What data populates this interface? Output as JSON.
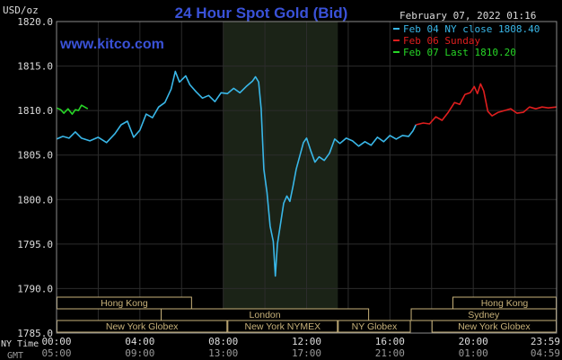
{
  "header": {
    "title": "24 Hour Spot Gold (Bid)",
    "unit": "USD/oz",
    "timestamp": "February 07, 2022 01:16",
    "site": "www.kitco.com"
  },
  "legend": [
    {
      "label": "Feb 04 NY close 1808.40",
      "color": "#39b7e8"
    },
    {
      "label": "Feb 06 Sunday",
      "color": "#e01e1e"
    },
    {
      "label": "Feb 07 Last 1810.20",
      "color": "#27d627"
    }
  ],
  "colors": {
    "background": "#000000",
    "grid": "#2c2c2c",
    "session_shade": "#1b2317",
    "market_bar": "#c8b27a",
    "axis_text": "#dcdcdc",
    "title": "#3a52d8",
    "site": "#3a52d8"
  },
  "markets": {
    "row1_left": "Hong Kong",
    "row1_right": "Hong Kong",
    "row2_left": "London",
    "row2_right": "Sydney",
    "row3": [
      "New York Globex",
      "New York NYMEX",
      "NY Globex",
      "New York Globex"
    ]
  },
  "time_axis": {
    "ny_label": "NY Time",
    "gmt_label": "GMT",
    "ny_ticks": [
      "00:00",
      "04:00",
      "08:00",
      "12:00",
      "16:00",
      "20:00",
      "23:59"
    ],
    "gmt_ticks": [
      "05:00",
      "09:00",
      "13:00",
      "17:00",
      "21:00",
      "01:00",
      "04:59"
    ]
  },
  "chart_data": {
    "type": "line",
    "title": "24 Hour Spot Gold (Bid)",
    "ylabel": "USD/oz",
    "x_unit": "NY time hours",
    "xlim": [
      0,
      24
    ],
    "ylim": [
      1785,
      1820
    ],
    "yticks": [
      1785,
      1790,
      1795,
      1800,
      1805,
      1810,
      1815,
      1820
    ],
    "ytick_labels": [
      "1785.0",
      "1790.0",
      "1795.0",
      "1800.0",
      "1805.0",
      "1810.0",
      "1815.0",
      "1820.0"
    ],
    "grid": true,
    "shaded_session_hours": [
      8.0,
      13.5
    ],
    "series": [
      {
        "name": "Feb 04 NY close 1808.40",
        "color": "#39b7e8",
        "points": [
          [
            0.0,
            1806.8
          ],
          [
            0.3,
            1807.1
          ],
          [
            0.6,
            1806.9
          ],
          [
            0.9,
            1807.6
          ],
          [
            1.2,
            1806.9
          ],
          [
            1.6,
            1806.6
          ],
          [
            2.0,
            1807.0
          ],
          [
            2.4,
            1806.4
          ],
          [
            2.8,
            1807.4
          ],
          [
            3.1,
            1808.4
          ],
          [
            3.4,
            1808.8
          ],
          [
            3.7,
            1807.0
          ],
          [
            4.0,
            1807.8
          ],
          [
            4.3,
            1809.6
          ],
          [
            4.6,
            1809.2
          ],
          [
            4.9,
            1810.4
          ],
          [
            5.2,
            1810.9
          ],
          [
            5.5,
            1812.4
          ],
          [
            5.7,
            1814.4
          ],
          [
            5.9,
            1813.2
          ],
          [
            6.2,
            1813.9
          ],
          [
            6.4,
            1812.9
          ],
          [
            6.7,
            1812.1
          ],
          [
            7.0,
            1811.4
          ],
          [
            7.3,
            1811.7
          ],
          [
            7.6,
            1811.0
          ],
          [
            7.9,
            1812.0
          ],
          [
            8.2,
            1811.9
          ],
          [
            8.5,
            1812.5
          ],
          [
            8.8,
            1812.0
          ],
          [
            9.1,
            1812.7
          ],
          [
            9.4,
            1813.3
          ],
          [
            9.55,
            1813.8
          ],
          [
            9.7,
            1813.2
          ],
          [
            9.82,
            1810.2
          ],
          [
            9.95,
            1803.4
          ],
          [
            10.1,
            1800.8
          ],
          [
            10.25,
            1797.0
          ],
          [
            10.4,
            1795.3
          ],
          [
            10.5,
            1791.4
          ],
          [
            10.6,
            1795.0
          ],
          [
            10.75,
            1797.3
          ],
          [
            10.9,
            1799.6
          ],
          [
            11.05,
            1800.4
          ],
          [
            11.2,
            1799.8
          ],
          [
            11.35,
            1801.5
          ],
          [
            11.5,
            1803.4
          ],
          [
            11.65,
            1804.7
          ],
          [
            11.85,
            1806.4
          ],
          [
            12.0,
            1806.9
          ],
          [
            12.2,
            1805.5
          ],
          [
            12.4,
            1804.2
          ],
          [
            12.6,
            1804.8
          ],
          [
            12.85,
            1804.4
          ],
          [
            13.1,
            1805.2
          ],
          [
            13.35,
            1806.8
          ],
          [
            13.6,
            1806.3
          ],
          [
            13.9,
            1806.9
          ],
          [
            14.2,
            1806.6
          ],
          [
            14.5,
            1806.0
          ],
          [
            14.8,
            1806.5
          ],
          [
            15.1,
            1806.1
          ],
          [
            15.4,
            1807.0
          ],
          [
            15.7,
            1806.5
          ],
          [
            16.0,
            1807.2
          ],
          [
            16.3,
            1806.8
          ],
          [
            16.6,
            1807.2
          ],
          [
            16.9,
            1807.1
          ],
          [
            17.1,
            1807.7
          ],
          [
            17.25,
            1808.4
          ]
        ]
      },
      {
        "name": "Feb 06 Sunday",
        "color": "#e01e1e",
        "points": [
          [
            17.25,
            1808.4
          ],
          [
            17.6,
            1808.6
          ],
          [
            17.9,
            1808.5
          ],
          [
            18.2,
            1809.3
          ],
          [
            18.5,
            1808.9
          ],
          [
            18.8,
            1809.8
          ],
          [
            19.1,
            1810.9
          ],
          [
            19.35,
            1810.7
          ],
          [
            19.6,
            1811.8
          ],
          [
            19.85,
            1812.0
          ],
          [
            20.05,
            1812.7
          ],
          [
            20.2,
            1811.9
          ],
          [
            20.35,
            1813.0
          ],
          [
            20.5,
            1812.2
          ],
          [
            20.7,
            1809.9
          ],
          [
            20.9,
            1809.4
          ],
          [
            21.2,
            1809.8
          ],
          [
            21.5,
            1810.0
          ],
          [
            21.8,
            1810.2
          ],
          [
            22.1,
            1809.7
          ],
          [
            22.4,
            1809.8
          ],
          [
            22.7,
            1810.4
          ],
          [
            23.0,
            1810.2
          ],
          [
            23.3,
            1810.4
          ],
          [
            23.6,
            1810.3
          ],
          [
            23.99,
            1810.4
          ]
        ]
      },
      {
        "name": "Feb 07 Last 1810.20",
        "color": "#27d627",
        "points": [
          [
            0.0,
            1810.3
          ],
          [
            0.2,
            1810.1
          ],
          [
            0.35,
            1809.7
          ],
          [
            0.55,
            1810.2
          ],
          [
            0.75,
            1809.6
          ],
          [
            0.9,
            1810.1
          ],
          [
            1.05,
            1810.0
          ],
          [
            1.2,
            1810.6
          ],
          [
            1.35,
            1810.4
          ],
          [
            1.5,
            1810.2
          ]
        ]
      }
    ]
  }
}
